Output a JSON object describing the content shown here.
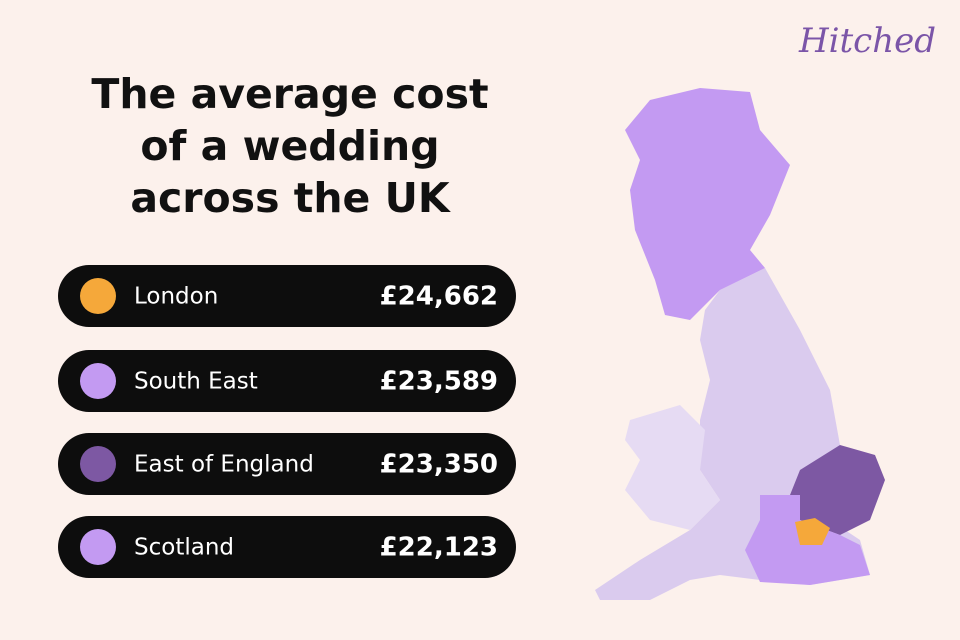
{
  "brand": "Hitched",
  "title": [
    "The average cost",
    "of a wedding",
    "across the UK"
  ],
  "items": [
    {
      "label": "London",
      "value": "£24,662",
      "color": "#f5a83a"
    },
    {
      "label": "South East",
      "value": "£23,589",
      "color": "#c39af2"
    },
    {
      "label": "East of England",
      "value": "£23,350",
      "color": "#7d58a3"
    },
    {
      "label": "Scotland",
      "value": "£22,123",
      "color": "#c39af2"
    }
  ]
}
